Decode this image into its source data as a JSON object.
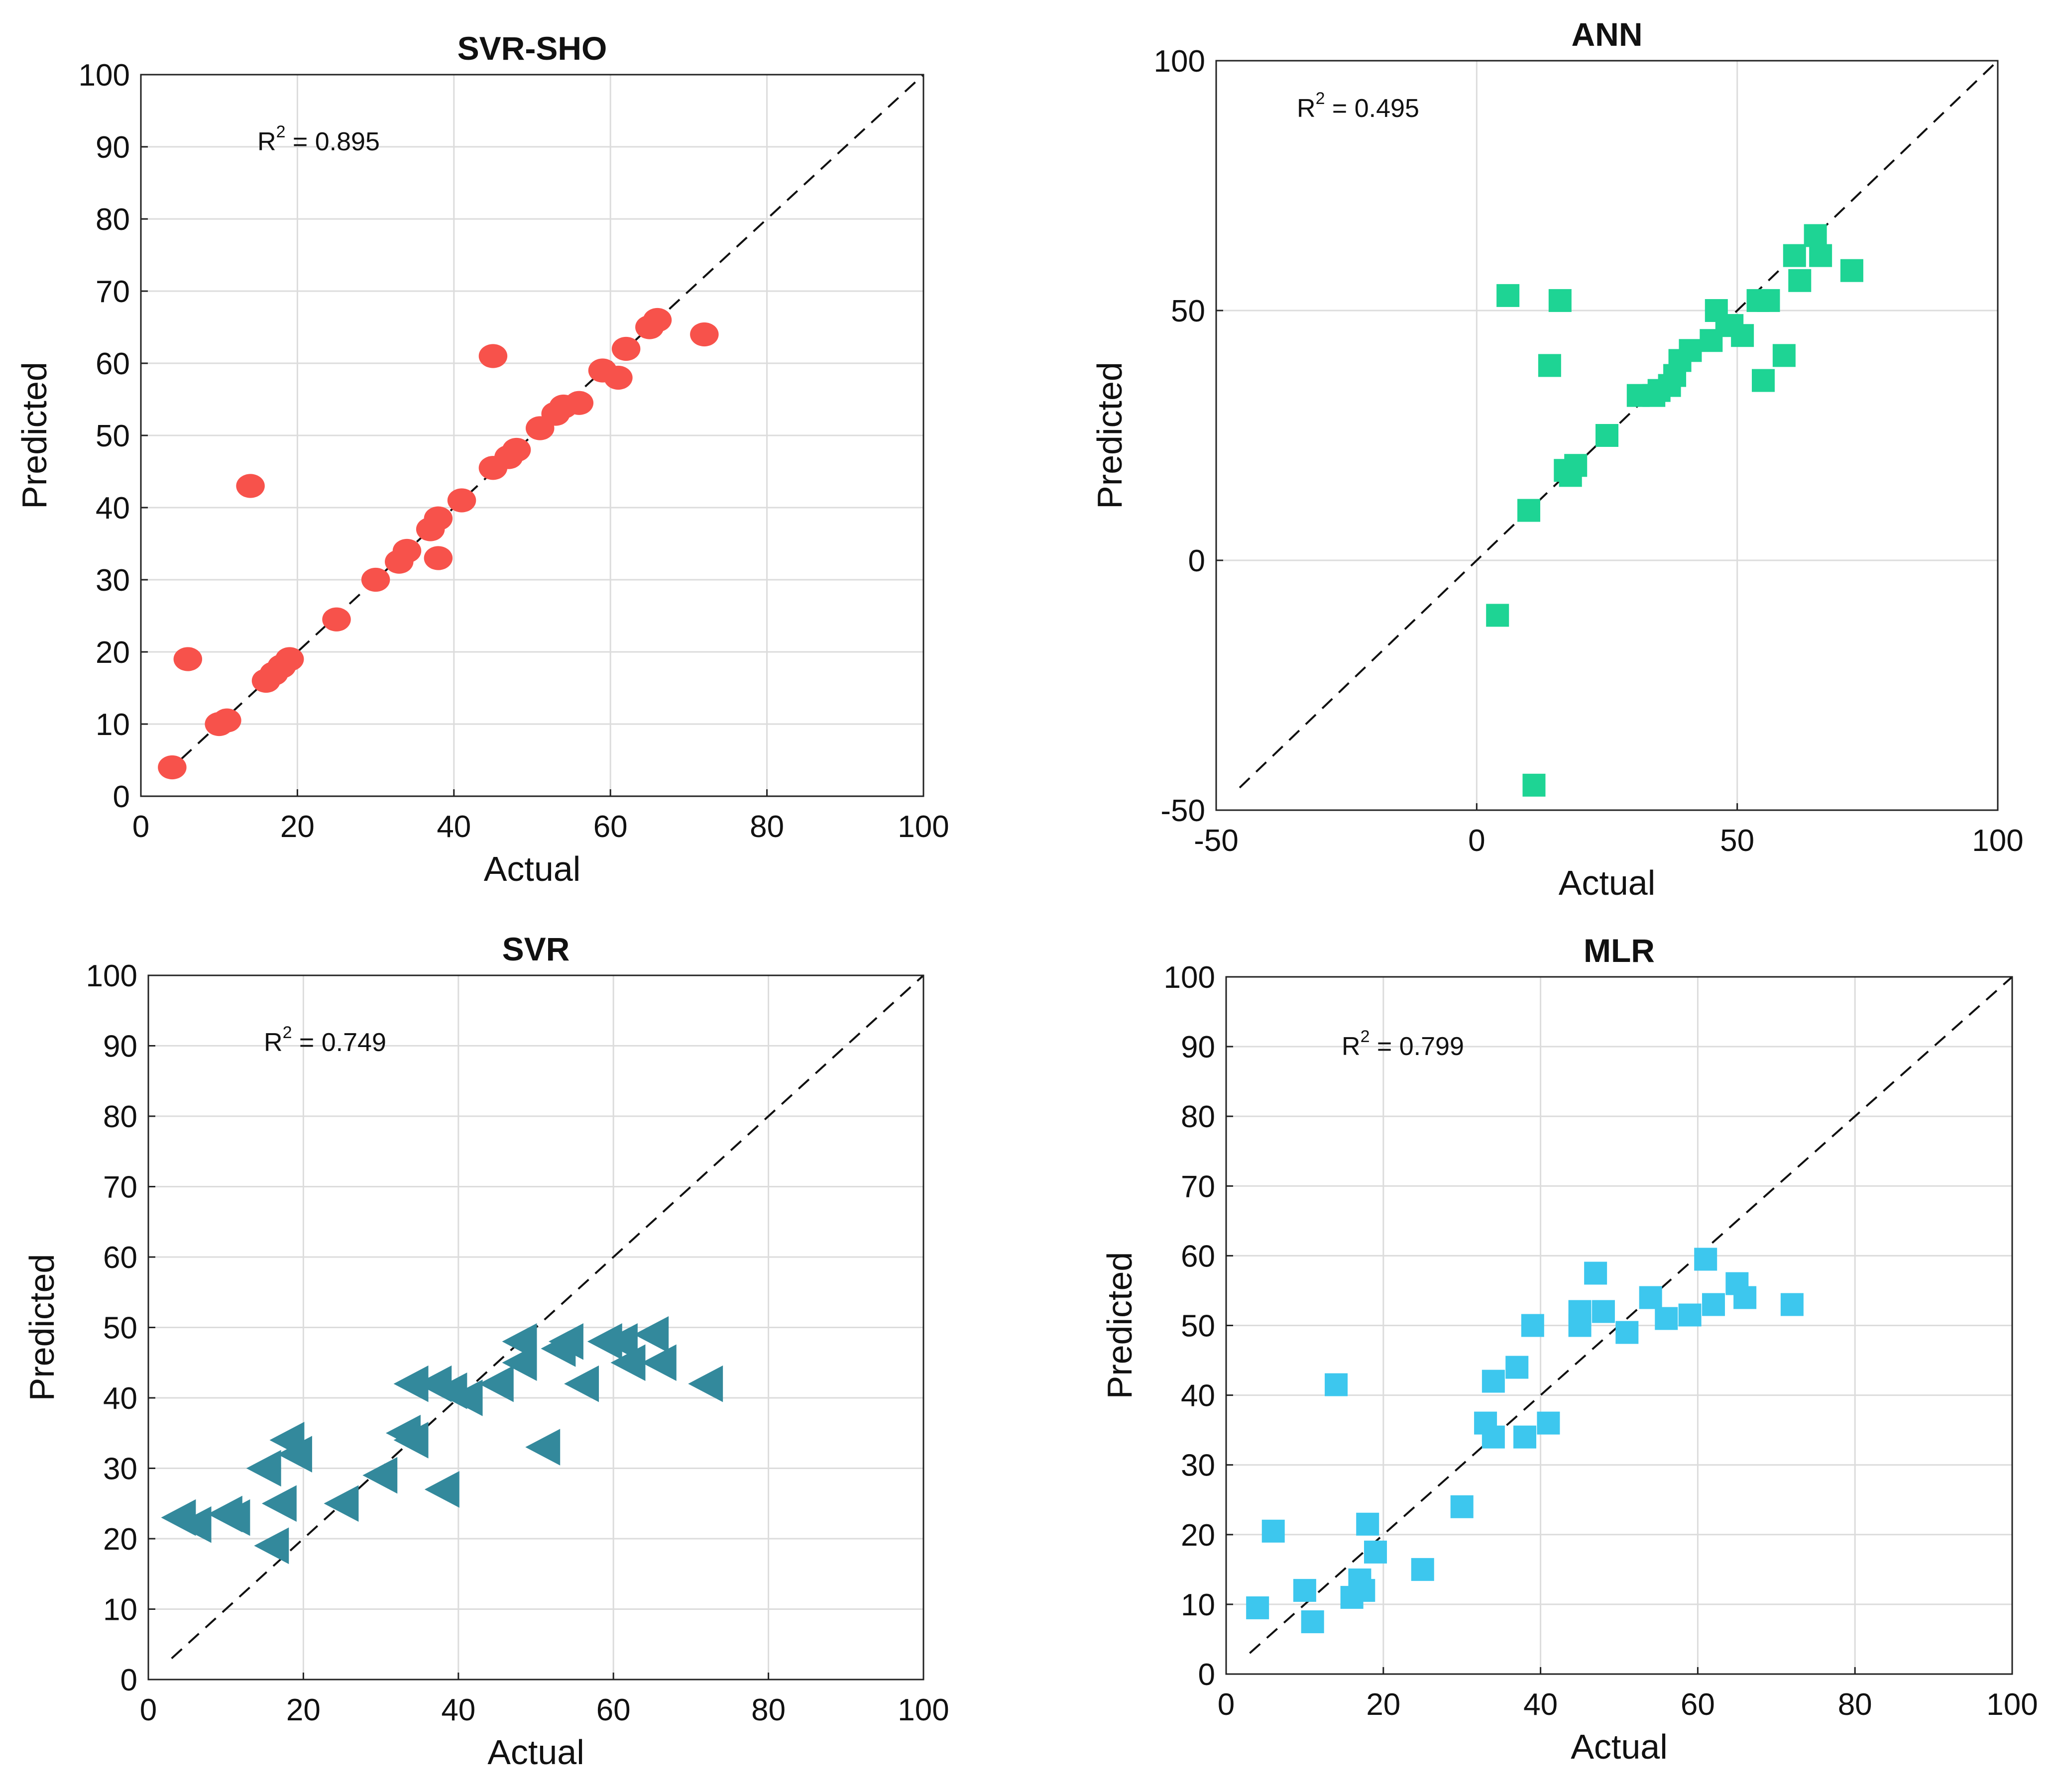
{
  "chart_data": [
    {
      "type": "scatter",
      "title": "SVR-SHO",
      "xlabel": "Actual",
      "ylabel": "Predicted",
      "xlim": [
        0,
        100
      ],
      "ylim": [
        0,
        100
      ],
      "xticks": [
        0,
        20,
        40,
        60,
        80,
        100
      ],
      "yticks": [
        0,
        10,
        20,
        30,
        40,
        50,
        60,
        70,
        80,
        90,
        100
      ],
      "grid": true,
      "reference_line": "y = x (dashed)",
      "annotation": {
        "base": "R",
        "sup": "2",
        "rest": " = 0.895"
      },
      "marker": "circle",
      "color": "#f7524b",
      "x": [
        4,
        6,
        10,
        11,
        14,
        16,
        17,
        18,
        19,
        25,
        30,
        33,
        34,
        37,
        38,
        38,
        41,
        45,
        45,
        47,
        48,
        51,
        53,
        54,
        56,
        59,
        61,
        62,
        65,
        66,
        72
      ],
      "y": [
        4,
        19,
        10,
        10.5,
        43,
        16,
        17,
        18,
        19,
        24.5,
        30,
        32.5,
        34,
        37,
        38.5,
        33,
        41,
        45.5,
        61,
        47,
        48,
        51,
        53,
        54,
        54.5,
        59,
        58,
        62,
        65,
        66,
        64
      ]
    },
    {
      "type": "scatter",
      "title": "ANN",
      "xlabel": "Actual",
      "ylabel": "Predicted",
      "xlim": [
        -50,
        100
      ],
      "ylim": [
        -50,
        100
      ],
      "xticks": [
        -50,
        0,
        50,
        100
      ],
      "yticks": [
        -50,
        0,
        50,
        100
      ],
      "grid": true,
      "reference_line": "y = x (dashed)",
      "annotation": {
        "base": "R",
        "sup": "2",
        "rest": " = 0.495"
      },
      "marker": "square",
      "color": "#1ed494",
      "x": [
        4,
        6,
        10,
        11,
        14,
        16,
        17,
        18,
        19,
        25,
        31,
        34,
        35,
        37,
        38,
        39,
        41,
        45,
        46,
        48,
        49,
        51,
        54,
        55,
        56,
        59,
        61,
        62,
        65,
        66,
        72
      ],
      "y": [
        -11,
        53,
        10,
        -45,
        39,
        52,
        18,
        17,
        19,
        25,
        33,
        33,
        34,
        35,
        37,
        40,
        42,
        44,
        50,
        47,
        47,
        45,
        52,
        36,
        52,
        41,
        61,
        56,
        65,
        61,
        58
      ]
    },
    {
      "type": "scatter",
      "title": "SVR",
      "xlabel": "Actual",
      "ylabel": "Predicted",
      "xlim": [
        0,
        100
      ],
      "ylim": [
        0,
        100
      ],
      "xticks": [
        0,
        20,
        40,
        60,
        80,
        100
      ],
      "yticks": [
        0,
        10,
        20,
        30,
        40,
        50,
        60,
        70,
        80,
        90,
        100
      ],
      "grid": true,
      "reference_line": "y = x (dashed)",
      "annotation": {
        "base": "R",
        "sup": "2",
        "rest": " = 0.749"
      },
      "marker": "triangle-left",
      "color": "#33899c",
      "x": [
        4,
        6,
        10,
        11,
        15,
        16,
        17,
        18,
        19,
        25,
        30,
        33,
        34,
        34,
        37,
        38,
        39,
        41,
        45,
        48,
        48,
        51,
        53,
        54,
        56,
        59,
        61,
        62,
        65,
        66,
        72
      ],
      "y": [
        23,
        22,
        23.5,
        23,
        30,
        19,
        25,
        34,
        32,
        25,
        29,
        35,
        42,
        34,
        42,
        27,
        41,
        40,
        42,
        48,
        45,
        33,
        47,
        48,
        42,
        48,
        48,
        45,
        49,
        45,
        42
      ]
    },
    {
      "type": "scatter",
      "title": "MLR",
      "xlabel": "Actual",
      "ylabel": "Predicted",
      "xlim": [
        0,
        100
      ],
      "ylim": [
        0,
        100
      ],
      "xticks": [
        0,
        20,
        40,
        60,
        80,
        100
      ],
      "yticks": [
        0,
        10,
        20,
        30,
        40,
        50,
        60,
        70,
        80,
        90,
        100
      ],
      "grid": true,
      "reference_line": "y = x (dashed)",
      "annotation": {
        "base": "R",
        "sup": "2",
        "rest": " = 0.799"
      },
      "marker": "square",
      "color": "#3dc7ee",
      "x": [
        4,
        6,
        10,
        11,
        14,
        16,
        17,
        17.5,
        18,
        19,
        25,
        30,
        33,
        34,
        34,
        37,
        38,
        39,
        41,
        45,
        45,
        47,
        48,
        51,
        54,
        56,
        59,
        61,
        62,
        65,
        66,
        72
      ],
      "y": [
        9.5,
        20.5,
        12,
        7.5,
        41.5,
        11,
        13.5,
        12,
        21.5,
        17.5,
        15,
        24,
        36,
        42,
        34,
        44,
        34,
        50,
        36,
        52,
        50,
        57.5,
        52,
        49,
        54,
        51,
        51.5,
        59.5,
        53,
        56,
        54,
        53
      ]
    }
  ]
}
